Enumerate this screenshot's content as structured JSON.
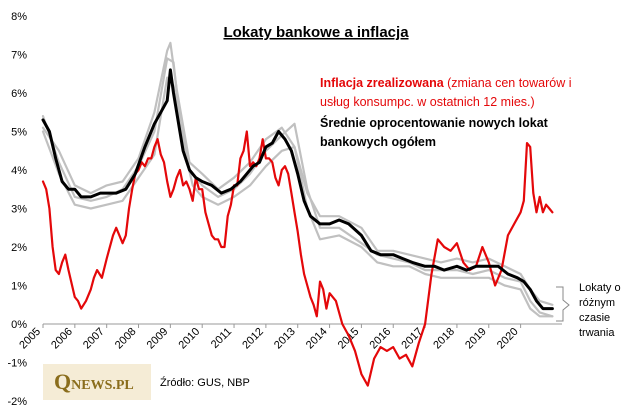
{
  "chart_data": {
    "type": "line",
    "title": "Lokaty bankowe a inflacja",
    "ylim": [
      -2,
      8
    ],
    "xlim": [
      2005,
      2021.3
    ],
    "y_ticks": [
      "-2%",
      "-1%",
      "0%",
      "1%",
      "2%",
      "3%",
      "4%",
      "5%",
      "6%",
      "7%",
      "8%"
    ],
    "y_tick_values": [
      -2,
      -1,
      0,
      1,
      2,
      3,
      4,
      5,
      6,
      7,
      8
    ],
    "x_ticks": [
      "2005",
      "2006",
      "2007",
      "2008",
      "2009",
      "2010",
      "2011",
      "2012",
      "2013",
      "2014",
      "2015",
      "2016",
      "2017",
      "2018",
      "2019",
      "2020"
    ],
    "x_tick_values": [
      2005,
      2006,
      2007,
      2008,
      2009,
      2010,
      2011,
      2012,
      2013,
      2014,
      2015,
      2016,
      2017,
      2018,
      2019,
      2020
    ],
    "grid": false,
    "legend": {
      "red_bold": "Inflacja zrealizowana",
      "red_rest_line1": " (zmiana cen towarów i",
      "red_line2": "usług konsumpc. w ostatnich 12 mies.)",
      "black_line1": "Średnie oprocentowanie nowych lokat",
      "black_line2": "bankowych ogółem"
    },
    "side_label": [
      "Lokaty o",
      "różnym",
      "czasie",
      "trwania"
    ],
    "source": "Źródło: GUS, NBP",
    "colors": {
      "inflation": "#e4080a",
      "average": "#000000",
      "maturity": "#c0c0c0",
      "logo": "#8a6d1c"
    },
    "series": [
      {
        "name": "Inflacja zrealizowana",
        "color": "#e4080a",
        "x": [
          2005.0,
          2005.1,
          2005.2,
          2005.3,
          2005.4,
          2005.5,
          2005.6,
          2005.7,
          2005.8,
          2006.0,
          2006.1,
          2006.2,
          2006.35,
          2006.5,
          2006.6,
          2006.7,
          2006.85,
          2007.0,
          2007.2,
          2007.3,
          2007.4,
          2007.5,
          2007.6,
          2007.7,
          2007.8,
          2007.9,
          2008.0,
          2008.1,
          2008.2,
          2008.3,
          2008.4,
          2008.5,
          2008.6,
          2008.7,
          2008.8,
          2008.9,
          2009.0,
          2009.1,
          2009.2,
          2009.3,
          2009.4,
          2009.5,
          2009.6,
          2009.7,
          2009.8,
          2009.9,
          2010.0,
          2010.1,
          2010.2,
          2010.3,
          2010.4,
          2010.5,
          2010.6,
          2010.7,
          2010.8,
          2010.9,
          2011.0,
          2011.1,
          2011.2,
          2011.3,
          2011.4,
          2011.5,
          2011.6,
          2011.7,
          2011.8,
          2011.9,
          2012.0,
          2012.1,
          2012.2,
          2012.3,
          2012.4,
          2012.5,
          2012.6,
          2012.7,
          2012.8,
          2012.9,
          2013.0,
          2013.1,
          2013.2,
          2013.3,
          2013.4,
          2013.5,
          2013.6,
          2013.7,
          2013.8,
          2013.9,
          2014.0,
          2014.2,
          2014.4,
          2014.6,
          2014.8,
          2015.0,
          2015.2,
          2015.4,
          2015.6,
          2015.8,
          2016.0,
          2016.2,
          2016.4,
          2016.6,
          2016.8,
          2017.0,
          2017.2,
          2017.4,
          2017.6,
          2017.8,
          2018.0,
          2018.2,
          2018.4,
          2018.6,
          2018.8,
          2019.0,
          2019.2,
          2019.4,
          2019.6,
          2019.8,
          2020.0,
          2020.1,
          2020.2,
          2020.3,
          2020.4,
          2020.5,
          2020.6,
          2020.7,
          2020.8,
          2020.9,
          2021.0
        ],
        "y": [
          3.7,
          3.5,
          3.0,
          2.0,
          1.4,
          1.3,
          1.6,
          1.8,
          1.4,
          0.7,
          0.6,
          0.4,
          0.6,
          0.9,
          1.2,
          1.4,
          1.2,
          1.7,
          2.3,
          2.5,
          2.3,
          2.1,
          2.3,
          3.0,
          3.5,
          3.9,
          4.0,
          4.2,
          4.1,
          4.3,
          4.3,
          4.6,
          4.8,
          4.4,
          4.2,
          3.7,
          3.3,
          3.5,
          3.8,
          4.0,
          3.6,
          3.7,
          3.5,
          3.2,
          3.8,
          3.5,
          3.5,
          2.9,
          2.6,
          2.3,
          2.2,
          2.2,
          2.0,
          2.0,
          2.8,
          3.1,
          3.6,
          3.6,
          4.3,
          4.5,
          5.0,
          4.1,
          4.2,
          4.1,
          4.3,
          4.8,
          4.3,
          4.3,
          4.2,
          3.8,
          3.6,
          4.0,
          4.1,
          3.9,
          3.4,
          2.9,
          2.4,
          1.8,
          1.3,
          1.0,
          0.7,
          0.5,
          0.2,
          1.1,
          0.9,
          0.4,
          0.8,
          0.6,
          0.0,
          -0.3,
          -0.7,
          -1.3,
          -1.6,
          -0.9,
          -0.6,
          -0.7,
          -0.6,
          -0.9,
          -0.8,
          -1.1,
          -0.5,
          0.0,
          1.3,
          2.2,
          2.0,
          1.9,
          2.1,
          1.6,
          1.4,
          1.5,
          2.0,
          1.6,
          1.0,
          1.4,
          2.3,
          2.6,
          2.9,
          3.2,
          4.7,
          4.6,
          3.4,
          2.9,
          3.3,
          2.9,
          3.1,
          3.0,
          2.9
        ]
      },
      {
        "name": "Średnie oprocentowanie nowych lokat bankowych ogółem",
        "color": "#000000",
        "x": [
          2005.0,
          2005.2,
          2005.4,
          2005.6,
          2005.8,
          2006.0,
          2006.2,
          2006.5,
          2006.8,
          2007.0,
          2007.3,
          2007.6,
          2007.9,
          2008.2,
          2008.5,
          2008.7,
          2008.9,
          2009.0,
          2009.1,
          2009.2,
          2009.4,
          2009.6,
          2009.8,
          2010.0,
          2010.3,
          2010.6,
          2010.9,
          2011.2,
          2011.4,
          2011.6,
          2011.8,
          2012.0,
          2012.2,
          2012.4,
          2012.6,
          2012.8,
          2013.0,
          2013.2,
          2013.4,
          2013.7,
          2014.0,
          2014.3,
          2014.6,
          2015.0,
          2015.3,
          2015.6,
          2016.0,
          2016.3,
          2016.6,
          2017.0,
          2017.3,
          2017.6,
          2018.0,
          2018.3,
          2018.6,
          2019.0,
          2019.3,
          2019.6,
          2019.9,
          2020.1,
          2020.3,
          2020.5,
          2020.7,
          2020.9,
          2021.0
        ],
        "y": [
          5.3,
          5.0,
          4.3,
          3.7,
          3.5,
          3.5,
          3.3,
          3.3,
          3.4,
          3.4,
          3.4,
          3.5,
          3.9,
          4.6,
          5.2,
          5.5,
          5.8,
          6.6,
          6.0,
          5.5,
          4.5,
          4.0,
          3.8,
          3.7,
          3.6,
          3.4,
          3.5,
          3.7,
          3.9,
          4.1,
          4.2,
          4.6,
          4.7,
          5.0,
          4.8,
          4.5,
          3.9,
          3.2,
          2.8,
          2.6,
          2.6,
          2.7,
          2.6,
          2.3,
          1.9,
          1.8,
          1.8,
          1.7,
          1.6,
          1.5,
          1.5,
          1.4,
          1.5,
          1.4,
          1.5,
          1.5,
          1.5,
          1.3,
          1.2,
          1.1,
          0.9,
          0.6,
          0.4,
          0.4,
          0.4
        ]
      },
      {
        "name": "Lokaty o różnym czasie trwania (1)",
        "color": "#c0c0c0",
        "x": [
          2005.0,
          2005.5,
          2006.0,
          2006.5,
          2007.0,
          2007.5,
          2008.0,
          2008.5,
          2008.9,
          2009.0,
          2009.2,
          2009.6,
          2010.0,
          2010.5,
          2011.0,
          2011.5,
          2012.0,
          2012.5,
          2012.9,
          2013.3,
          2013.7,
          2014.3,
          2015.0,
          2015.5,
          2016.0,
          2016.5,
          2017.0,
          2017.5,
          2018.0,
          2018.5,
          2019.0,
          2019.5,
          2020.0,
          2020.3,
          2020.6,
          2021.0
        ],
        "y": [
          5.1,
          4.5,
          3.6,
          3.4,
          3.6,
          3.7,
          4.3,
          5.5,
          7.1,
          7.3,
          6.1,
          4.2,
          3.9,
          3.5,
          3.8,
          4.2,
          4.8,
          5.1,
          4.6,
          3.4,
          2.8,
          2.8,
          2.5,
          1.9,
          1.9,
          1.8,
          1.7,
          1.6,
          1.7,
          1.6,
          1.7,
          1.5,
          1.3,
          0.9,
          0.6,
          0.5
        ]
      },
      {
        "name": "Lokaty o różnym czasie trwania (2)",
        "color": "#c0c0c0",
        "x": [
          2005.0,
          2005.5,
          2006.0,
          2006.5,
          2007.0,
          2007.5,
          2008.0,
          2008.5,
          2008.9,
          2009.1,
          2009.3,
          2009.6,
          2010.0,
          2010.5,
          2011.0,
          2011.5,
          2012.0,
          2012.5,
          2012.9,
          2013.3,
          2013.7,
          2014.3,
          2015.0,
          2015.5,
          2016.0,
          2016.5,
          2017.0,
          2017.5,
          2018.0,
          2018.5,
          2019.0,
          2019.5,
          2020.0,
          2020.3,
          2020.6,
          2021.0
        ],
        "y": [
          5.4,
          4.2,
          3.3,
          3.2,
          3.3,
          3.5,
          4.1,
          5.0,
          6.9,
          6.8,
          5.3,
          4.0,
          3.6,
          3.3,
          3.5,
          3.9,
          4.5,
          4.9,
          5.2,
          3.5,
          2.5,
          2.5,
          2.1,
          1.8,
          1.7,
          1.6,
          1.4,
          1.4,
          1.4,
          1.3,
          1.4,
          1.2,
          1.1,
          0.6,
          0.3,
          0.2
        ]
      },
      {
        "name": "Lokaty o różnym czasie trwania (3)",
        "color": "#c0c0c0",
        "x": [
          2005.0,
          2005.5,
          2006.0,
          2006.5,
          2007.0,
          2007.5,
          2008.0,
          2008.5,
          2008.9,
          2009.1,
          2009.4,
          2009.7,
          2010.0,
          2010.5,
          2011.0,
          2011.5,
          2012.0,
          2012.5,
          2012.9,
          2013.3,
          2013.7,
          2014.3,
          2015.0,
          2015.5,
          2016.0,
          2016.5,
          2017.0,
          2017.5,
          2018.0,
          2018.5,
          2019.0,
          2019.5,
          2020.0,
          2020.3,
          2020.6,
          2021.0
        ],
        "y": [
          5.0,
          3.9,
          3.1,
          3.0,
          3.1,
          3.2,
          3.8,
          4.4,
          6.4,
          6.2,
          4.7,
          3.6,
          3.3,
          3.1,
          3.3,
          3.6,
          4.1,
          4.5,
          4.6,
          3.0,
          2.2,
          2.3,
          2.0,
          1.6,
          1.5,
          1.5,
          1.3,
          1.2,
          1.2,
          1.2,
          1.2,
          1.0,
          0.9,
          0.4,
          0.2,
          0.2
        ]
      }
    ]
  }
}
